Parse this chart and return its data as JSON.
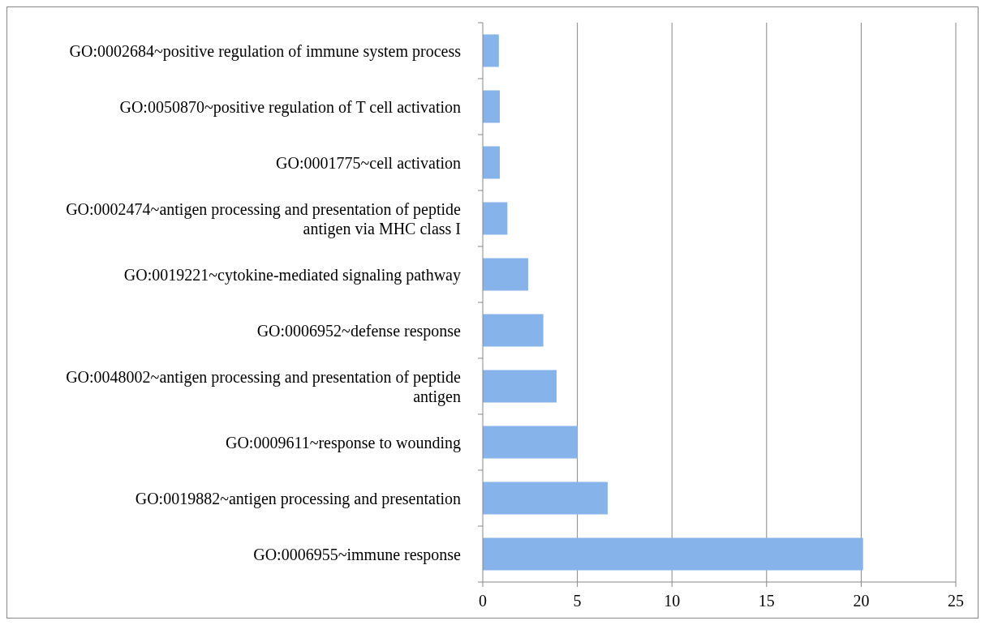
{
  "chart_data": {
    "type": "bar",
    "orientation": "horizontal",
    "categories": [
      "GO:0002684~positive regulation of immune system process",
      "GO:0050870~positive regulation of T cell activation",
      "GO:0001775~cell activation",
      "GO:0002474~antigen processing and presentation of peptide antigen via MHC class I",
      "GO:0019221~cytokine-mediated signaling pathway",
      "GO:0006952~defense response",
      "GO:0048002~antigen processing and presentation of peptide antigen",
      "GO:0009611~response to wounding",
      "GO:0019882~antigen processing and presentation",
      "GO:0006955~immune response"
    ],
    "values": [
      0.85,
      0.9,
      0.9,
      1.3,
      2.4,
      3.2,
      3.9,
      5.0,
      6.6,
      20.1
    ],
    "color": "#86b4ea",
    "xlim": [
      0,
      25
    ],
    "xticks": [
      0,
      5,
      10,
      15,
      20,
      25
    ],
    "grid": "x"
  }
}
